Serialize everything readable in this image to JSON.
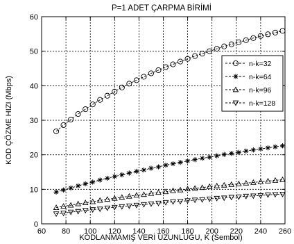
{
  "chart_data": {
    "type": "line",
    "title": "P=1 ADET ÇARPMA BİRİMİ",
    "xlabel": "KODLANMAMIŞ VERİ UZUNLUĞU, K (Sembol)",
    "ylabel": "KOD ÇÖZME HIZI (Mbps)",
    "xlim": [
      60,
      260
    ],
    "ylim": [
      0,
      60
    ],
    "xticks": [
      60,
      80,
      100,
      120,
      140,
      160,
      180,
      200,
      220,
      240,
      260
    ],
    "yticks": [
      0,
      10,
      20,
      30,
      40,
      50,
      60
    ],
    "grid": true,
    "legend_position": "top-right",
    "x": [
      72,
      78,
      84,
      90,
      96,
      102,
      108,
      114,
      120,
      126,
      132,
      138,
      144,
      150,
      156,
      162,
      168,
      174,
      180,
      186,
      192,
      198,
      204,
      210,
      216,
      222,
      228,
      234,
      240,
      246,
      252,
      258
    ],
    "series": [
      {
        "name": "n-k=32",
        "marker": "circle",
        "values": [
          26.8,
          28.6,
          30.2,
          31.8,
          33.2,
          34.6,
          35.9,
          37.1,
          38.3,
          39.5,
          40.6,
          41.6,
          42.6,
          43.6,
          44.5,
          45.4,
          46.2,
          47.0,
          47.8,
          48.6,
          49.3,
          50.0,
          50.7,
          51.4,
          52.0,
          52.6,
          53.2,
          53.8,
          54.4,
          54.9,
          55.4,
          55.9
        ]
      },
      {
        "name": "n-k=64",
        "marker": "asterisk",
        "values": [
          9.2,
          9.8,
          10.4,
          11.0,
          11.6,
          12.1,
          12.7,
          13.2,
          13.7,
          14.2,
          14.7,
          15.2,
          15.6,
          16.1,
          16.5,
          17.0,
          17.4,
          17.8,
          18.2,
          18.6,
          19.0,
          19.3,
          19.7,
          20.1,
          20.4,
          20.7,
          21.1,
          21.4,
          21.7,
          22.0,
          22.3,
          22.6
        ]
      },
      {
        "name": "n-k=96",
        "marker": "triangle-up",
        "values": [
          4.7,
          5.1,
          5.4,
          5.8,
          6.1,
          6.4,
          6.8,
          7.1,
          7.4,
          7.7,
          8.0,
          8.3,
          8.5,
          8.8,
          9.1,
          9.3,
          9.6,
          9.8,
          10.1,
          10.3,
          10.5,
          10.8,
          11.0,
          11.2,
          11.4,
          11.6,
          11.8,
          12.0,
          12.2,
          12.4,
          12.6,
          12.8
        ]
      },
      {
        "name": "n-k=128",
        "marker": "triangle-down",
        "values": [
          2.9,
          3.1,
          3.4,
          3.6,
          3.9,
          4.1,
          4.3,
          4.6,
          4.8,
          5.0,
          5.2,
          5.4,
          5.6,
          5.8,
          6.0,
          6.2,
          6.4,
          6.5,
          6.7,
          6.9,
          7.0,
          7.2,
          7.4,
          7.5,
          7.7,
          7.8,
          8.0,
          8.1,
          8.2,
          8.4,
          8.5,
          8.6
        ]
      }
    ]
  }
}
